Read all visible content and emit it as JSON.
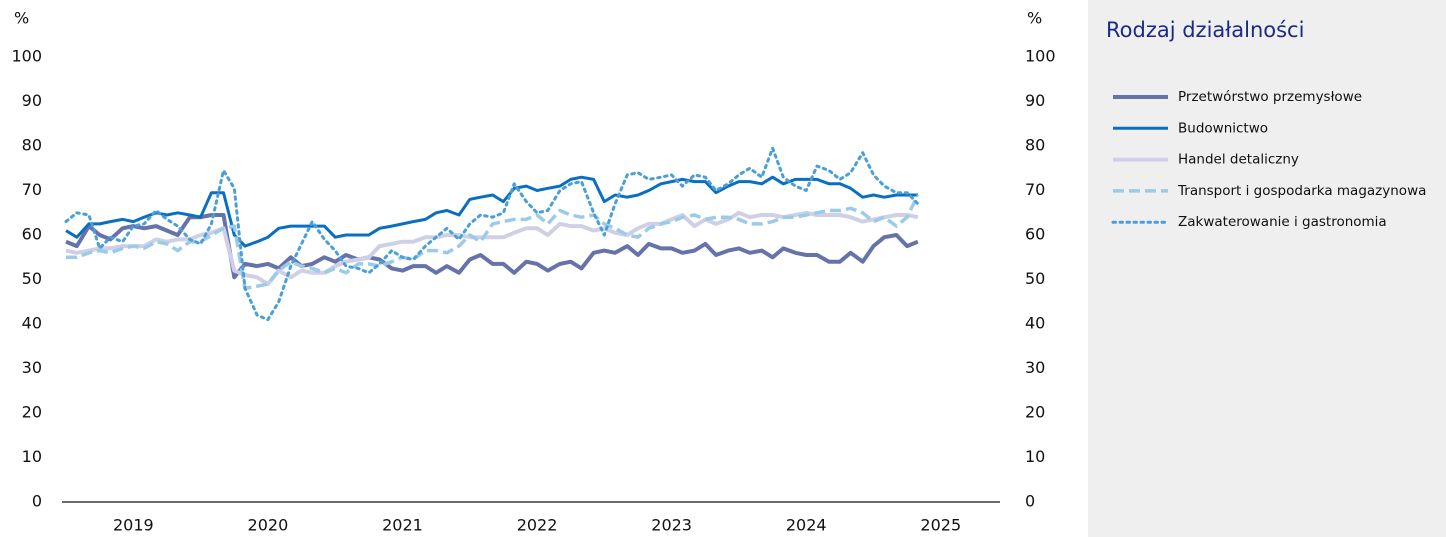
{
  "chart_data": {
    "type": "line",
    "y_unit": "%",
    "y2_unit": "%",
    "legend_title": "Rodzaj działalności",
    "legend": "right",
    "x": [
      2019,
      2019.08,
      2019.17,
      2019.25,
      2019.33,
      2019.42,
      2019.5,
      2019.58,
      2019.67,
      2019.75,
      2019.83,
      2019.92,
      2020,
      2020.08,
      2020.17,
      2020.25,
      2020.33,
      2020.42,
      2020.5,
      2020.58,
      2020.67,
      2020.75,
      2020.83,
      2020.92,
      2021,
      2021.08,
      2021.17,
      2021.25,
      2021.33,
      2021.42,
      2021.5,
      2021.58,
      2021.67,
      2021.75,
      2021.83,
      2021.92,
      2022,
      2022.08,
      2022.17,
      2022.25,
      2022.33,
      2022.42,
      2022.5,
      2022.58,
      2022.67,
      2022.75,
      2022.83,
      2022.92,
      2023,
      2023.08,
      2023.17,
      2023.25,
      2023.33,
      2023.42,
      2023.5,
      2023.58,
      2023.67,
      2023.75,
      2023.83,
      2023.92,
      2024,
      2024.08,
      2024.17,
      2024.25,
      2024.33,
      2024.42,
      2024.5,
      2024.58,
      2024.67,
      2024.75,
      2024.83,
      2024.92,
      2025,
      2025.08,
      2025.17,
      2025.25,
      2025.33
    ],
    "xlim": [
      2018.97,
      2025.94
    ],
    "xticks": [
      {
        "value": 2019.5,
        "label": "2019"
      },
      {
        "value": 2020.5,
        "label": "2020"
      },
      {
        "value": 2021.5,
        "label": "2021"
      },
      {
        "value": 2022.5,
        "label": "2022"
      },
      {
        "value": 2023.5,
        "label": "2023"
      },
      {
        "value": 2024.5,
        "label": "2024"
      },
      {
        "value": 2025.5,
        "label": "2025"
      }
    ],
    "ylim": [
      0,
      100
    ],
    "yticks": [
      0,
      10,
      20,
      30,
      40,
      50,
      60,
      70,
      80,
      90,
      100
    ],
    "y2lim": [
      0,
      100
    ],
    "y2ticks": [
      0,
      10,
      20,
      30,
      40,
      50,
      60,
      70,
      80,
      90,
      100
    ],
    "grid": false,
    "series": [
      {
        "name": "Przetwórstwo przemysłowe",
        "color": "#6673aa",
        "style": "solid",
        "width": 4,
        "values": [
          58.5,
          57.5,
          62,
          60,
          59,
          61.5,
          62,
          61.5,
          62,
          61,
          60,
          64,
          64,
          64.5,
          64.5,
          50.5,
          53.5,
          53,
          53.5,
          52.5,
          55,
          53,
          53.5,
          55,
          54,
          55.5,
          54.5,
          55,
          54.5,
          52.5,
          52,
          53,
          53,
          51.5,
          53,
          51.5,
          54.5,
          55.5,
          53.5,
          53.5,
          51.5,
          54,
          53.5,
          52,
          53.5,
          54,
          52.5,
          56,
          56.5,
          56,
          57.5,
          55.5,
          58,
          57,
          57,
          56,
          56.5,
          58,
          55.5,
          56.5,
          57,
          56,
          56.5,
          55,
          57,
          56,
          55.5,
          55.5,
          54,
          54,
          56,
          54,
          57.5,
          59.5,
          60,
          57.5,
          58.5
        ]
      },
      {
        "name": "Budownictwo",
        "color": "#0a6fc2",
        "style": "solid",
        "width": 3,
        "values": [
          61,
          59.5,
          62.5,
          62.5,
          63,
          63.5,
          63,
          64,
          65,
          64.5,
          65,
          64.5,
          64,
          69.5,
          69.5,
          60,
          57.5,
          58.5,
          59.5,
          61.5,
          62,
          62,
          62,
          62,
          59.5,
          60,
          60,
          60,
          61.5,
          62,
          62.5,
          63,
          63.5,
          65,
          65.5,
          64.5,
          68,
          68.5,
          69,
          67.5,
          70.5,
          71,
          70,
          70.5,
          71,
          72.5,
          73,
          72.5,
          67.5,
          69,
          68.5,
          69,
          70,
          71.5,
          72,
          72.5,
          72,
          72,
          69.5,
          71,
          72,
          72,
          71.5,
          73,
          71.5,
          72.5,
          72.5,
          72.5,
          71.5,
          71.5,
          70.5,
          68.5,
          69,
          68.5,
          69,
          69,
          69
        ]
      },
      {
        "name": "Handel detaliczny",
        "color": "#cfd0e6",
        "style": "solid",
        "width": 4,
        "values": [
          56.5,
          56,
          56.5,
          57,
          57,
          57.5,
          57.5,
          57.5,
          59,
          58.5,
          59,
          59,
          60,
          60.5,
          61.5,
          52,
          51,
          50.5,
          49,
          52,
          50.5,
          52,
          51.5,
          51.5,
          53,
          54,
          54.5,
          55,
          57.5,
          58,
          58.5,
          58.5,
          59.5,
          59.5,
          60,
          60,
          59.5,
          59.5,
          59.5,
          59.5,
          60.5,
          61.5,
          61.5,
          60,
          62.5,
          62,
          62,
          61,
          61.5,
          60.5,
          60,
          61.5,
          62.5,
          62.5,
          63.5,
          64.5,
          62,
          63.5,
          62.5,
          63.5,
          65,
          64,
          64.5,
          64.5,
          64,
          64.5,
          65,
          64.5,
          64.5,
          64.5,
          64,
          63,
          63.5,
          64,
          64.5,
          64.5,
          64
        ]
      },
      {
        "name": "Transport i gospodarka magazynowa",
        "color": "#9ccbea",
        "style": "dashed",
        "width": 3.5,
        "values": [
          55,
          55,
          56,
          56.5,
          56,
          57,
          57.5,
          57,
          58.5,
          58,
          56.5,
          58.5,
          58.5,
          60,
          61.5,
          62,
          48,
          48.5,
          49,
          52,
          54,
          53,
          52.5,
          51.5,
          52.5,
          51.5,
          53.5,
          53.5,
          53,
          54,
          55,
          54.5,
          56.5,
          56.5,
          56,
          57.5,
          60,
          58.5,
          62.5,
          63,
          63.5,
          63.5,
          64.5,
          62.5,
          65.5,
          64.5,
          64,
          64.5,
          62.5,
          61.5,
          60,
          59.5,
          61.5,
          62.5,
          63,
          64,
          64.5,
          63.5,
          64,
          64,
          63.5,
          62.5,
          62.5,
          63,
          64,
          64,
          64.5,
          65,
          65.5,
          65.5,
          66,
          65,
          63,
          64,
          62,
          64,
          69
        ]
      },
      {
        "name": "Zakwaterowanie i gastronomia",
        "color": "#4a9fd8",
        "style": "dotted",
        "width": 3,
        "values": [
          63,
          65,
          64.5,
          57,
          59.5,
          58.5,
          62,
          62.5,
          65.5,
          63.5,
          62,
          59,
          58,
          62.5,
          74.5,
          70.5,
          48,
          42,
          41,
          45,
          53,
          58,
          63,
          59,
          56.5,
          53,
          52.5,
          51.5,
          53.5,
          56.5,
          55,
          54.5,
          57.5,
          59.5,
          61.5,
          59,
          62.5,
          64.5,
          64,
          65,
          71.5,
          67.5,
          65,
          65.5,
          70,
          71.5,
          72,
          65,
          60,
          67,
          73.5,
          74,
          72.5,
          73,
          73.5,
          71,
          73.5,
          73,
          70,
          71.5,
          73.5,
          75,
          73,
          79.5,
          73,
          71,
          70,
          75.5,
          74.5,
          72.5,
          74,
          78.5,
          73.5,
          71,
          69.5,
          69.5,
          67
        ]
      }
    ]
  }
}
